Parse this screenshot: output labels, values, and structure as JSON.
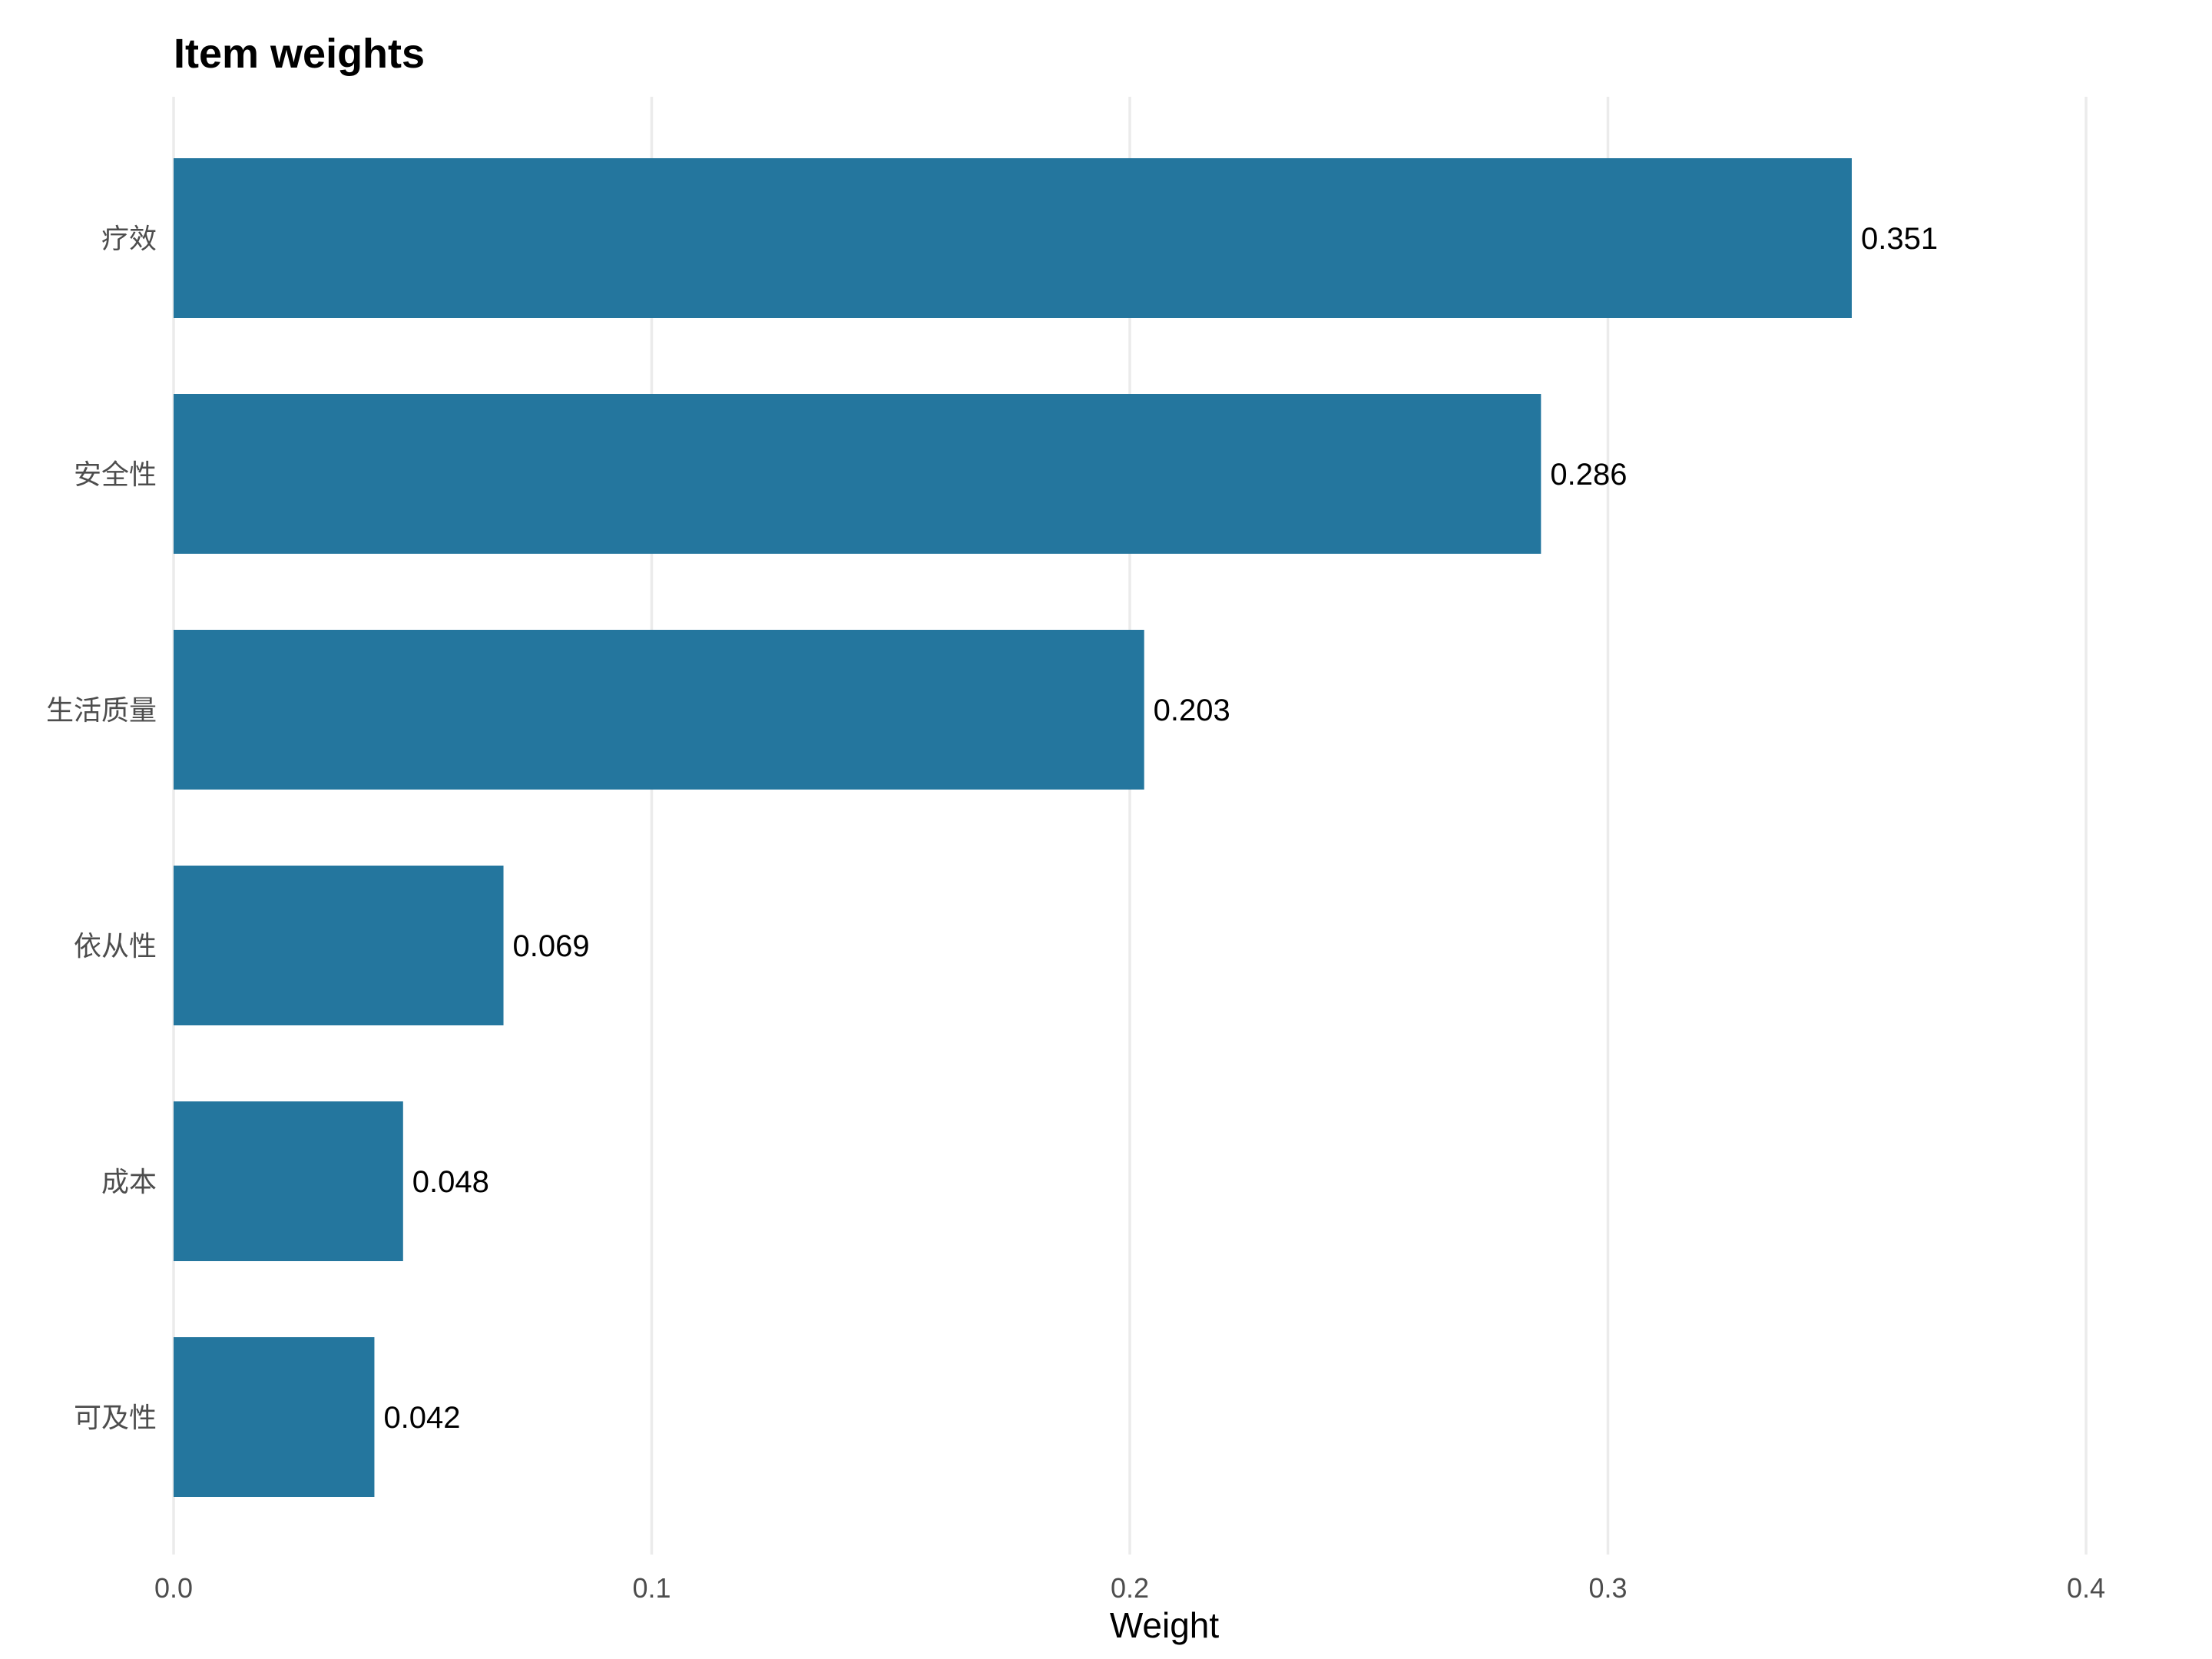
{
  "chart_data": {
    "type": "bar",
    "orientation": "horizontal",
    "title": "Item weights",
    "xlabel": "Weight",
    "ylabel": "",
    "categories": [
      "疗效",
      "安全性",
      "生活质量",
      "依从性",
      "成本",
      "可及性"
    ],
    "values": [
      0.351,
      0.286,
      0.203,
      0.069,
      0.048,
      0.042
    ],
    "value_labels": [
      "0.351",
      "0.286",
      "0.203",
      "0.069",
      "0.048",
      "0.042"
    ],
    "xlim": [
      0,
      0.4
    ],
    "x_ticks": [
      0,
      0.1,
      0.2,
      0.3,
      0.4
    ],
    "x_tick_labels": [
      "0.0",
      "0.1",
      "0.2",
      "0.3",
      "0.4"
    ],
    "bar_color": "#24769e",
    "grid": "vertical major gridlines",
    "legend": "none"
  }
}
